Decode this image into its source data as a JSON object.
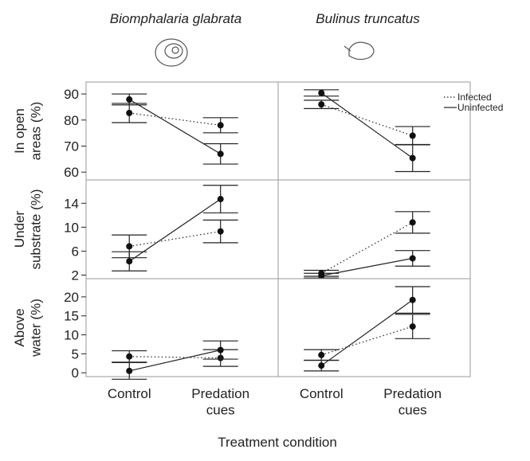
{
  "columns": [
    "Biomphalaria glabrata",
    "Bulinus truncatus"
  ],
  "legend": [
    {
      "name": "Infected",
      "dash": "dotted"
    },
    {
      "name": "Uninfected",
      "dash": "solid"
    }
  ],
  "categories": [
    "Control",
    "Predation cues"
  ],
  "xlabel": "Treatment condition",
  "chart_data": [
    {
      "type": "line",
      "ylabel": [
        "In open",
        "areas (%)"
      ],
      "ylim": [
        57,
        94.6
      ],
      "yticks": [
        60,
        70,
        80,
        90
      ],
      "panels": [
        {
          "series": [
            {
              "values": [
                82.7,
                78
              ],
              "errors": [
                3.7,
                2.9
              ]
            },
            {
              "values": [
                87.9,
                67
              ],
              "errors": [
                2.1,
                3.9
              ]
            }
          ]
        },
        {
          "series": [
            {
              "values": [
                86,
                74
              ],
              "errors": [
                1.6,
                3.5
              ]
            },
            {
              "values": [
                90.4,
                65.4
              ],
              "errors": [
                1.2,
                5.2
              ]
            }
          ]
        }
      ]
    },
    {
      "type": "line",
      "ylabel": [
        "Under",
        "substrate (%)"
      ],
      "ylim": [
        1.4,
        17.9
      ],
      "yticks": [
        2,
        6,
        10,
        14
      ],
      "panels": [
        {
          "series": [
            {
              "values": [
                6.8,
                9.3
              ],
              "errors": [
                1.9,
                1.9
              ]
            },
            {
              "values": [
                4.3,
                14.7
              ],
              "errors": [
                1.6,
                2.3
              ]
            }
          ]
        },
        {
          "series": [
            {
              "values": [
                2.3,
                10.8
              ],
              "errors": [
                0.5,
                1.8
              ]
            },
            {
              "values": [
                1.9,
                4.8
              ],
              "errors": [
                0.4,
                1.3
              ]
            }
          ]
        }
      ]
    },
    {
      "type": "line",
      "ylabel": [
        "Above",
        "water (%)"
      ],
      "ylim": [
        -1,
        24.8
      ],
      "yticks": [
        0,
        5,
        10,
        15,
        20
      ],
      "panels": [
        {
          "series": [
            {
              "values": [
                4.3,
                3.9
              ],
              "errors": [
                1.5,
                2.2
              ]
            },
            {
              "values": [
                0.5,
                6
              ],
              "errors": [
                2.2,
                2.4
              ]
            }
          ]
        },
        {
          "series": [
            {
              "values": [
                4.7,
                12.2
              ],
              "errors": [
                1.4,
                3.2
              ]
            },
            {
              "values": [
                1.9,
                19.2
              ],
              "errors": [
                1.4,
                3.5
              ]
            }
          ]
        }
      ]
    }
  ]
}
